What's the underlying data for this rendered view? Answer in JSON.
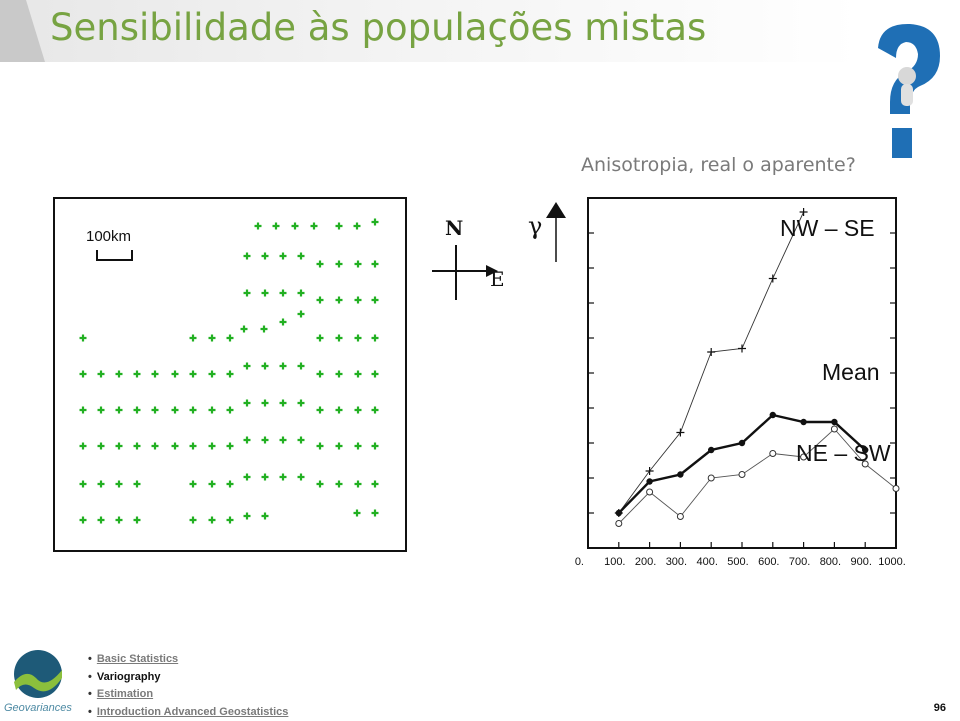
{
  "slide": {
    "title": "Sensibilidade às populações mistas",
    "subtitle": "Anisotropia, real o aparente?",
    "page_number": "96"
  },
  "map": {
    "scale_label": "100km",
    "compass_n": "N",
    "compass_e": "E",
    "marker_color": "#22b022"
  },
  "chart_data": {
    "type": "line",
    "x_tick_labels": [
      "0.",
      "100.",
      "200.",
      "300.",
      "400.",
      "500.",
      "600.",
      "700.",
      "800.",
      "900.",
      "1000."
    ],
    "xlim": [
      0,
      1000
    ],
    "y_axis_symbol": "γ",
    "series": [
      {
        "name": "NW – SE",
        "marker": "plus",
        "x": [
          100,
          200,
          300,
          400,
          500,
          600,
          700
        ],
        "y": [
          0.1,
          0.22,
          0.33,
          0.56,
          0.57,
          0.77,
          0.96
        ]
      },
      {
        "name": "Mean",
        "marker": "filled-circle",
        "x": [
          100,
          200,
          300,
          400,
          500,
          600,
          700,
          800,
          900
        ],
        "y": [
          0.1,
          0.19,
          0.21,
          0.28,
          0.3,
          0.38,
          0.36,
          0.36,
          0.28
        ]
      },
      {
        "name": "NE – SW",
        "marker": "open-circle",
        "x": [
          100,
          200,
          300,
          400,
          500,
          600,
          700,
          800,
          900,
          1000
        ],
        "y": [
          0.07,
          0.16,
          0.09,
          0.2,
          0.21,
          0.27,
          0.26,
          0.34,
          0.24,
          0.17
        ]
      }
    ]
  },
  "logo": {
    "text": "Geovariances"
  },
  "nav": {
    "items": [
      {
        "label": "Basic Statistics"
      },
      {
        "label": "Variography"
      },
      {
        "label": "Estimation"
      },
      {
        "label": "Introduction Advanced Geostatistics"
      }
    ]
  }
}
